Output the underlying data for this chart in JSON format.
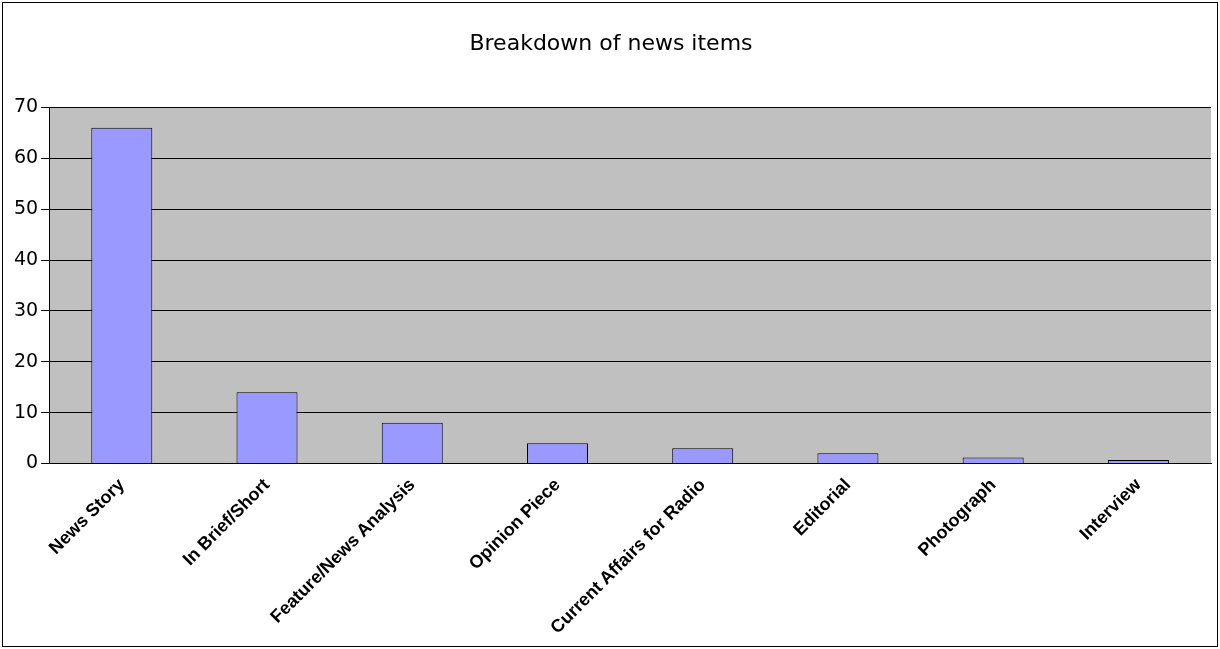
{
  "chart_data": {
    "type": "bar",
    "title": "Breakdown of news items",
    "categories": [
      "News Story",
      "In Brief/Short",
      "Feature/News Analysis",
      "Opinion Piece",
      "Current Affairs for Radio",
      "Editorial",
      "Photograph",
      "Interview"
    ],
    "values": [
      66,
      14,
      8,
      4,
      3,
      2,
      1.2,
      0.7
    ],
    "color": "#9999ff",
    "ylim": [
      0,
      70
    ],
    "yticks": [
      0,
      10,
      20,
      30,
      40,
      50,
      60,
      70
    ],
    "grid": "y"
  }
}
